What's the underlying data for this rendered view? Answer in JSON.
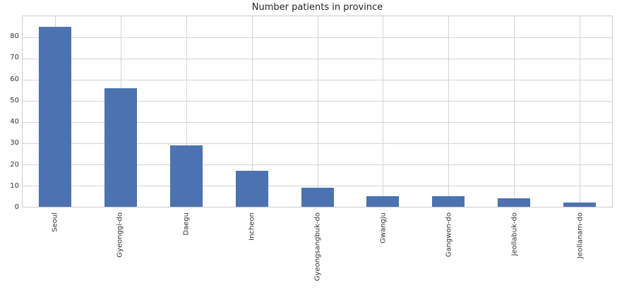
{
  "chart": {
    "title": "Number patients in province",
    "bar_color": "#4C72B0",
    "grid_color": "#d5d5d5",
    "spine_color": "#cccccc",
    "text_color": "#333333",
    "background_color": "#ffffff"
  },
  "chart_data": {
    "type": "bar",
    "title": "Number patients in province",
    "categories": [
      "Seoul",
      "Gyeonggi-do",
      "Daegu",
      "Incheon",
      "Gyeongsangbuk-do",
      "Gwangju",
      "Gangwon-do",
      "Jeollabuk-do",
      "Jeollanam-do"
    ],
    "values": [
      85,
      56,
      29,
      17,
      9,
      5,
      5,
      4,
      2
    ],
    "xlabel": "",
    "ylabel": "",
    "ylim": [
      0,
      90
    ],
    "yticks": [
      0,
      10,
      20,
      30,
      40,
      50,
      60,
      70,
      80
    ],
    "grid": true,
    "legend": false,
    "bar_color": "#4C72B0",
    "x_tick_rotation": 90
  }
}
